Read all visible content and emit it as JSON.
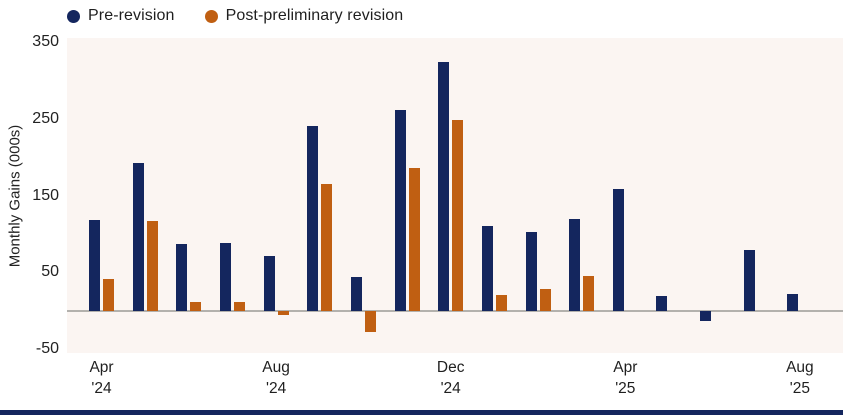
{
  "legend": {
    "items": [
      {
        "label": "Pre-revision",
        "color": "#14265e"
      },
      {
        "label": "Post-preliminary revision",
        "color": "#c05f12"
      }
    ]
  },
  "y_axis": {
    "title": "Monthly Gains (000s)",
    "ticks": [
      350,
      250,
      150,
      50,
      -50
    ]
  },
  "x_axis": {
    "ticks": [
      {
        "slot": 0,
        "month": "Apr",
        "year": "'24"
      },
      {
        "slot": 4,
        "month": "Aug",
        "year": "'24"
      },
      {
        "slot": 8,
        "month": "Dec",
        "year": "'24"
      },
      {
        "slot": 12,
        "month": "Apr",
        "year": "'25"
      },
      {
        "slot": 16,
        "month": "Aug",
        "year": "'25"
      }
    ]
  },
  "chart_data": {
    "type": "bar",
    "title": "",
    "xlabel": "",
    "ylabel": "Monthly Gains (000s)",
    "ylim": [
      -55,
      355
    ],
    "y_tick_step": 100,
    "grid": false,
    "zero_line": true,
    "legend_position": "top-left",
    "categories": [
      "Apr '24",
      "May '24",
      "Jun '24",
      "Jul '24",
      "Aug '24",
      "Sep '24",
      "Oct '24",
      "Nov '24",
      "Dec '24",
      "Jan '25",
      "Feb '25",
      "Mar '25",
      "Apr '25",
      "May '25",
      "Jun '25",
      "Jul '25",
      "Aug '25"
    ],
    "series": [
      {
        "name": "Pre-revision",
        "color": "#14265e",
        "values": [
          118,
          193,
          87,
          88,
          71,
          241,
          44,
          261,
          324,
          111,
          102,
          120,
          159,
          19,
          -13,
          79,
          22
        ]
      },
      {
        "name": "Post-preliminary revision",
        "color": "#c05f12",
        "values": [
          42,
          117,
          12,
          11,
          -6,
          165,
          -28,
          186,
          248,
          21,
          29,
          45,
          null,
          null,
          null,
          null,
          null
        ]
      }
    ]
  },
  "colors": {
    "background": "#ffffff",
    "plot_bg": "#fbf5f2",
    "zero_line": "#b3b1ad",
    "baseline_bar": "#14265e",
    "text": "#1f1f1f"
  }
}
